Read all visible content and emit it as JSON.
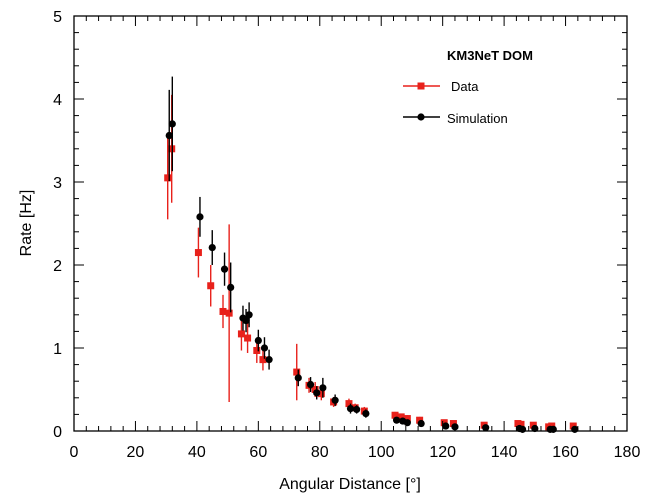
{
  "chart_data": {
    "type": "scatter",
    "title": "",
    "xlabel": "Angular Distance [°]",
    "ylabel": "Rate [Hz]",
    "xlim": [
      0,
      180
    ],
    "ylim": [
      0,
      5
    ],
    "xticks": [
      0,
      20,
      40,
      60,
      80,
      100,
      120,
      140,
      160,
      180
    ],
    "yticks": [
      0,
      1,
      2,
      3,
      4,
      5
    ],
    "grid": false,
    "legend": {
      "title": "KM3NeT DOM",
      "placement": "top-right",
      "entries": [
        "Data",
        "Simulation"
      ]
    },
    "colors": {
      "data": "#e8211b",
      "simulation": "#000000"
    },
    "series": [
      {
        "name": "Data",
        "marker": "square",
        "points": [
          {
            "x": 30.5,
            "y": 3.05,
            "err": 0.5
          },
          {
            "x": 31.8,
            "y": 3.4,
            "err": 0.65
          },
          {
            "x": 40.5,
            "y": 2.15,
            "err": 0.3
          },
          {
            "x": 44.5,
            "y": 1.75,
            "err": 0.25
          },
          {
            "x": 48.5,
            "y": 1.44,
            "err": 0.2
          },
          {
            "x": 50.5,
            "y": 1.42,
            "err": 1.07
          },
          {
            "x": 54.5,
            "y": 1.17,
            "err": 0.2
          },
          {
            "x": 56.5,
            "y": 1.12,
            "err": 0.18
          },
          {
            "x": 59.5,
            "y": 0.97,
            "err": 0.15
          },
          {
            "x": 61.5,
            "y": 0.86,
            "err": 0.13
          },
          {
            "x": 72.5,
            "y": 0.71,
            "err": 0.34
          },
          {
            "x": 76.5,
            "y": 0.55,
            "err": 0.09
          },
          {
            "x": 78.5,
            "y": 0.5,
            "err": 0.09
          },
          {
            "x": 80.5,
            "y": 0.45,
            "err": 0.08
          },
          {
            "x": 84.5,
            "y": 0.35,
            "err": 0.06
          },
          {
            "x": 89.5,
            "y": 0.33,
            "err": 0.06
          },
          {
            "x": 91.5,
            "y": 0.28,
            "err": 0.05
          },
          {
            "x": 94.5,
            "y": 0.24,
            "err": 0.05
          },
          {
            "x": 104.5,
            "y": 0.19,
            "err": 0.04
          },
          {
            "x": 106.5,
            "y": 0.17,
            "err": 0.04
          },
          {
            "x": 108.5,
            "y": 0.15,
            "err": 0.04
          },
          {
            "x": 112.5,
            "y": 0.13,
            "err": 0.04
          },
          {
            "x": 120.5,
            "y": 0.1,
            "err": 0.03
          },
          {
            "x": 123.5,
            "y": 0.09,
            "err": 0.03
          },
          {
            "x": 133.5,
            "y": 0.07,
            "err": 0.03
          },
          {
            "x": 144.5,
            "y": 0.09,
            "err": 0.03
          },
          {
            "x": 145.5,
            "y": 0.08,
            "err": 0.03
          },
          {
            "x": 149.5,
            "y": 0.07,
            "err": 0.03
          },
          {
            "x": 154.5,
            "y": 0.05,
            "err": 0.02
          },
          {
            "x": 155.5,
            "y": 0.06,
            "err": 0.02
          },
          {
            "x": 162.5,
            "y": 0.06,
            "err": 0.02
          }
        ]
      },
      {
        "name": "Simulation",
        "marker": "circle",
        "points": [
          {
            "x": 31.0,
            "y": 3.56,
            "err": 0.55
          },
          {
            "x": 32.0,
            "y": 3.7,
            "err": 0.57
          },
          {
            "x": 41.0,
            "y": 2.58,
            "err": 0.24
          },
          {
            "x": 45.0,
            "y": 2.21,
            "err": 0.21
          },
          {
            "x": 49.0,
            "y": 1.95,
            "err": 0.2
          },
          {
            "x": 51.0,
            "y": 1.73,
            "err": 0.3
          },
          {
            "x": 55.0,
            "y": 1.36,
            "err": 0.15
          },
          {
            "x": 56.0,
            "y": 1.33,
            "err": 0.14
          },
          {
            "x": 57.0,
            "y": 1.4,
            "err": 0.15
          },
          {
            "x": 60.0,
            "y": 1.09,
            "err": 0.13
          },
          {
            "x": 62.0,
            "y": 1.0,
            "err": 0.13
          },
          {
            "x": 63.5,
            "y": 0.86,
            "err": 0.12
          },
          {
            "x": 73.0,
            "y": 0.64,
            "err": 0.1
          },
          {
            "x": 77.0,
            "y": 0.56,
            "err": 0.09
          },
          {
            "x": 79.0,
            "y": 0.46,
            "err": 0.08
          },
          {
            "x": 81.0,
            "y": 0.52,
            "err": 0.12
          },
          {
            "x": 85.0,
            "y": 0.37,
            "err": 0.07
          },
          {
            "x": 90.0,
            "y": 0.27,
            "err": 0.06
          },
          {
            "x": 92.0,
            "y": 0.26,
            "err": 0.05
          },
          {
            "x": 95.0,
            "y": 0.21,
            "err": 0.05
          },
          {
            "x": 105.0,
            "y": 0.13,
            "err": 0.04
          },
          {
            "x": 107.0,
            "y": 0.12,
            "err": 0.04
          },
          {
            "x": 108.5,
            "y": 0.1,
            "err": 0.03
          },
          {
            "x": 113.0,
            "y": 0.09,
            "err": 0.03
          },
          {
            "x": 121.0,
            "y": 0.06,
            "err": 0.03
          },
          {
            "x": 124.0,
            "y": 0.05,
            "err": 0.03
          },
          {
            "x": 134.0,
            "y": 0.04,
            "err": 0.02
          },
          {
            "x": 145.0,
            "y": 0.03,
            "err": 0.02
          },
          {
            "x": 146.0,
            "y": 0.02,
            "err": 0.02
          },
          {
            "x": 150.0,
            "y": 0.03,
            "err": 0.02
          },
          {
            "x": 155.0,
            "y": 0.02,
            "err": 0.02
          },
          {
            "x": 156.0,
            "y": 0.02,
            "err": 0.02
          },
          {
            "x": 163.0,
            "y": 0.02,
            "err": 0.02
          }
        ]
      }
    ]
  }
}
